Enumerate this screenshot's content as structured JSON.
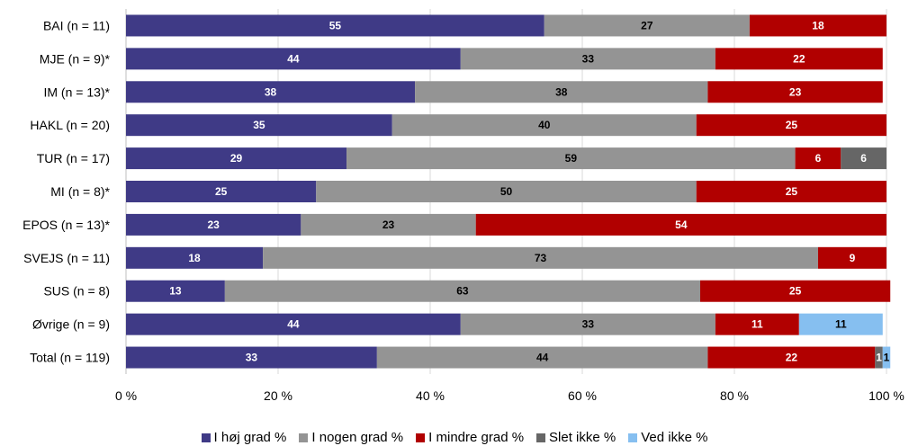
{
  "chart_data": {
    "type": "bar",
    "orientation": "horizontal",
    "stacked": true,
    "categories": [
      "BAI (n = 11)",
      "MJE (n = 9)*",
      "IM (n = 13)*",
      "HAKL (n = 20)",
      "TUR (n = 17)",
      "MI (n = 8)*",
      "EPOS (n = 13)*",
      "SVEJS (n = 11)",
      "SUS (n = 8)",
      "Øvrige (n = 9)",
      "Total (n = 119)"
    ],
    "series": [
      {
        "name": "I høj grad %",
        "color": "#3f3a86",
        "label_color": "#ffffff",
        "values": [
          55,
          44,
          38,
          35,
          29,
          25,
          23,
          18,
          13,
          44,
          33
        ],
        "display": [
          55,
          44,
          38,
          35,
          29,
          25,
          23,
          18,
          13,
          44,
          33
        ]
      },
      {
        "name": "I nogen grad %",
        "color": "#949494",
        "label_color": "#000000",
        "values": [
          27,
          33.5,
          38.5,
          40,
          59,
          50,
          23,
          73,
          62.5,
          33.5,
          43.5
        ],
        "display": [
          27,
          33,
          38,
          40,
          59,
          50,
          23,
          73,
          63,
          33,
          44
        ]
      },
      {
        "name": "I mindre grad %",
        "color": "#b10000",
        "label_color": "#ffffff",
        "values": [
          18,
          22,
          23,
          25,
          6,
          25,
          54,
          9,
          25,
          11,
          22
        ],
        "display": [
          18,
          22,
          23,
          25,
          6,
          25,
          54,
          9,
          25,
          11,
          22
        ]
      },
      {
        "name": "Slet ikke %",
        "color": "#666666",
        "label_color": "#ffffff",
        "values": [
          0,
          0,
          0,
          0,
          6,
          0,
          0,
          0,
          0,
          0,
          1
        ],
        "display": [
          null,
          null,
          null,
          null,
          6,
          null,
          null,
          null,
          null,
          null,
          1
        ]
      },
      {
        "name": "Ved ikke %",
        "color": "#86bff0",
        "label_color": "#000000",
        "values": [
          0,
          0,
          0,
          0,
          0,
          0,
          0,
          0,
          0,
          11,
          1
        ],
        "display": [
          null,
          null,
          null,
          null,
          null,
          null,
          null,
          null,
          null,
          11,
          1
        ]
      }
    ],
    "xlim": [
      0,
      100
    ],
    "xticks": [
      0,
      20,
      40,
      60,
      80,
      100
    ],
    "xtick_labels": [
      "0 %",
      "20 %",
      "40 %",
      "60 %",
      "80 %",
      "100 %"
    ],
    "grid": "vertical",
    "legend_position": "bottom"
  }
}
